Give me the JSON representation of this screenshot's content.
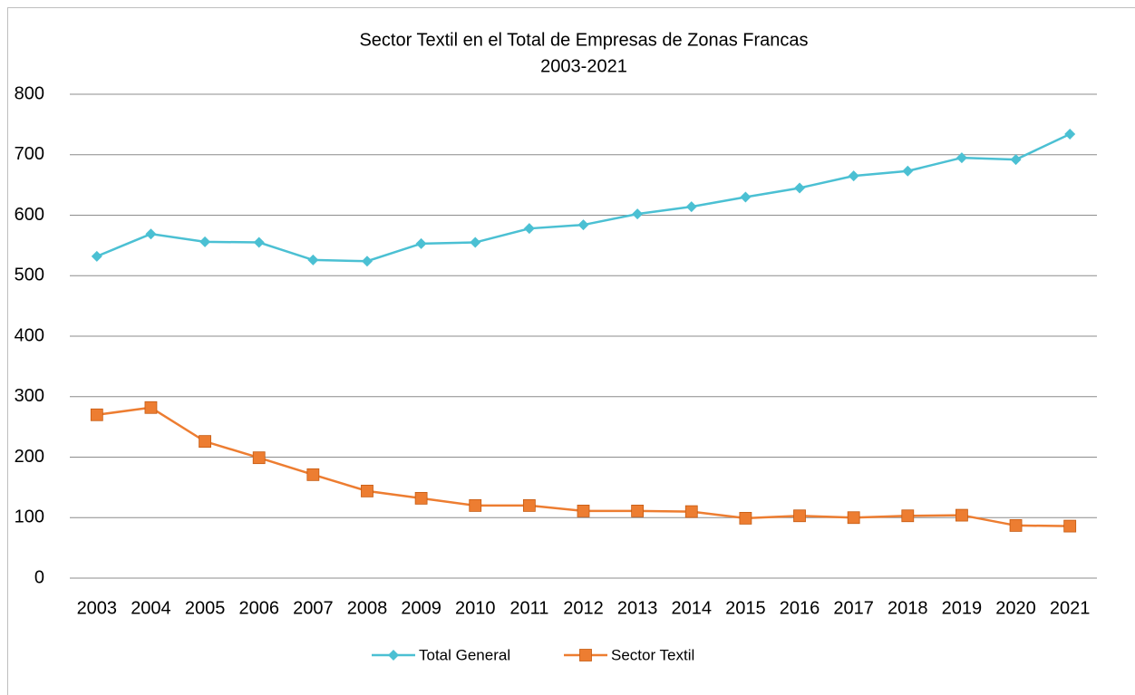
{
  "chart_data": {
    "type": "line",
    "title": "Sector Textil en el Total de Empresas de Zonas Francas",
    "subtitle": "2003-2021",
    "categories": [
      "2003",
      "2004",
      "2005",
      "2006",
      "2007",
      "2008",
      "2009",
      "2010",
      "2011",
      "2012",
      "2013",
      "2014",
      "2015",
      "2016",
      "2017",
      "2018",
      "2019",
      "2020",
      "2021"
    ],
    "series": [
      {
        "name": "Total General",
        "color": "#4bc0d3",
        "marker": "diamond",
        "values": [
          532,
          569,
          556,
          555,
          526,
          524,
          553,
          555,
          578,
          584,
          602,
          614,
          630,
          645,
          665,
          673,
          695,
          692,
          734
        ]
      },
      {
        "name": "Sector Textil",
        "color": "#ed7d31",
        "marker": "square",
        "values": [
          270,
          282,
          226,
          199,
          171,
          144,
          132,
          120,
          120,
          111,
          111,
          110,
          99,
          103,
          100,
          103,
          104,
          87,
          86
        ]
      }
    ],
    "ylim": [
      0,
      800
    ],
    "yticks": [
      0,
      100,
      200,
      300,
      400,
      500,
      600,
      700,
      800
    ],
    "grid": true,
    "legend": "bottom"
  }
}
